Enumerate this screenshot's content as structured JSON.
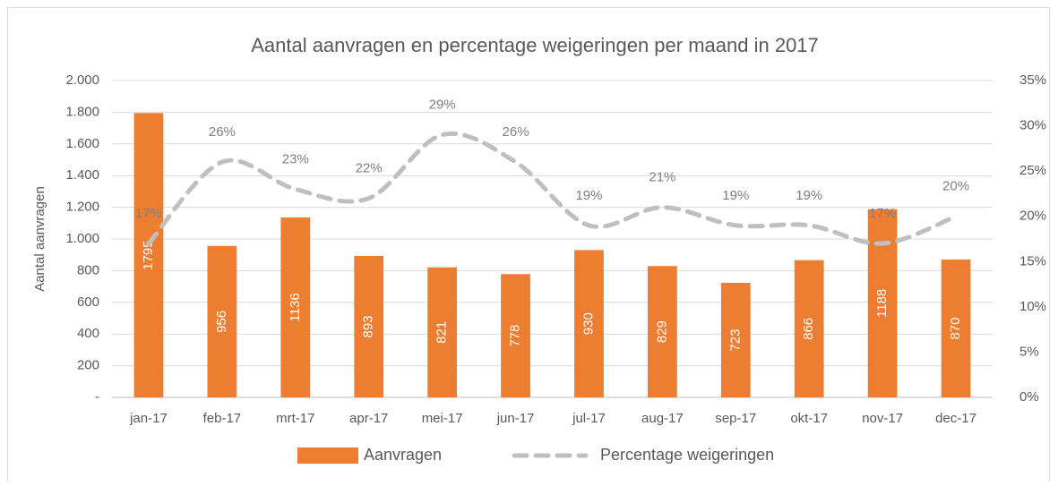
{
  "chart_data": {
    "type": "bar",
    "title": "Aantal aanvragen en percentage weigeringen per maand in 2017",
    "y_label": "Aantal aanvragen",
    "categories": [
      "jan-17",
      "feb-17",
      "mrt-17",
      "apr-17",
      "mei-17",
      "jun-17",
      "jul-17",
      "aug-17",
      "sep-17",
      "okt-17",
      "nov-17",
      "dec-17"
    ],
    "series": [
      {
        "name": "Aanvragen",
        "color": "#ed7d31",
        "type": "bar",
        "values": [
          1795,
          956,
          1136,
          893,
          821,
          778,
          930,
          829,
          723,
          866,
          1188,
          870
        ]
      },
      {
        "name": "Percentage weigeringen",
        "color": "#bfbfbf",
        "type": "line",
        "axis": "y2",
        "values": [
          17,
          26,
          23,
          22,
          29,
          26,
          19,
          21,
          19,
          19,
          17,
          20
        ],
        "value_labels": [
          "17%",
          "26%",
          "23%",
          "22%",
          "29%",
          "26%",
          "19%",
          "21%",
          "19%",
          "19%",
          "17%",
          "20%"
        ]
      }
    ],
    "ylim": [
      0,
      2000
    ],
    "yticks": [
      {
        "value": 0,
        "label": "-"
      },
      200,
      400,
      600,
      800,
      {
        "value": 1000,
        "label": "1.000"
      },
      {
        "value": 1200,
        "label": "1.200"
      },
      {
        "value": 1400,
        "label": "1.400"
      },
      {
        "value": 1600,
        "label": "1.600"
      },
      {
        "value": 1800,
        "label": "1.800"
      },
      {
        "value": 2000,
        "label": "2.000"
      }
    ],
    "y2lim": [
      0,
      35
    ],
    "y2ticks": [
      {
        "value": 0,
        "label": "0%"
      },
      {
        "value": 5,
        "label": "5%"
      },
      {
        "value": 10,
        "label": "10%"
      },
      {
        "value": 15,
        "label": "15%"
      },
      {
        "value": 20,
        "label": "20%"
      },
      {
        "value": 25,
        "label": "25%"
      },
      {
        "value": 30,
        "label": "30%"
      },
      {
        "value": 35,
        "label": "35%"
      }
    ],
    "grid": true,
    "legend": "bottom"
  }
}
